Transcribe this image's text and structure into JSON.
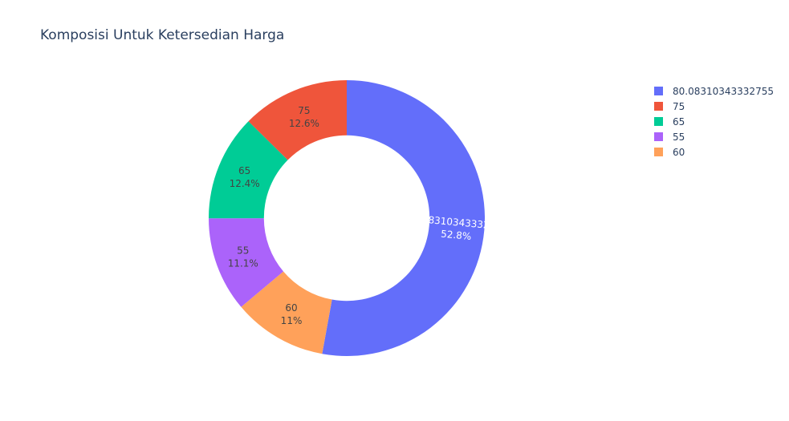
{
  "chart_data": {
    "type": "pie",
    "title": "Komposisi Untuk Ketersedian Harga",
    "hole": 0.6,
    "slices": [
      {
        "label": "80.08310343332755",
        "percent_text": "52.8%",
        "value": 52.8,
        "color": "#636efa",
        "text_color": "#ffffff"
      },
      {
        "label": "60",
        "percent_text": "11%",
        "value": 11.0,
        "color": "#ffa15a",
        "text_color": "#444444"
      },
      {
        "label": "55",
        "percent_text": "11.1%",
        "value": 11.1,
        "color": "#ab63fa",
        "text_color": "#444444"
      },
      {
        "label": "65",
        "percent_text": "12.4%",
        "value": 12.4,
        "color": "#00cc96",
        "text_color": "#444444"
      },
      {
        "label": "75",
        "percent_text": "12.6%",
        "value": 12.6,
        "color": "#ef553b",
        "text_color": "#444444"
      }
    ],
    "legend": [
      {
        "label": "80.08310343332755",
        "color": "#636efa"
      },
      {
        "label": "75",
        "color": "#ef553b"
      },
      {
        "label": "65",
        "color": "#00cc96"
      },
      {
        "label": "55",
        "color": "#ab63fa"
      },
      {
        "label": "60",
        "color": "#ffa15a"
      }
    ],
    "legend_position": "top-right"
  }
}
